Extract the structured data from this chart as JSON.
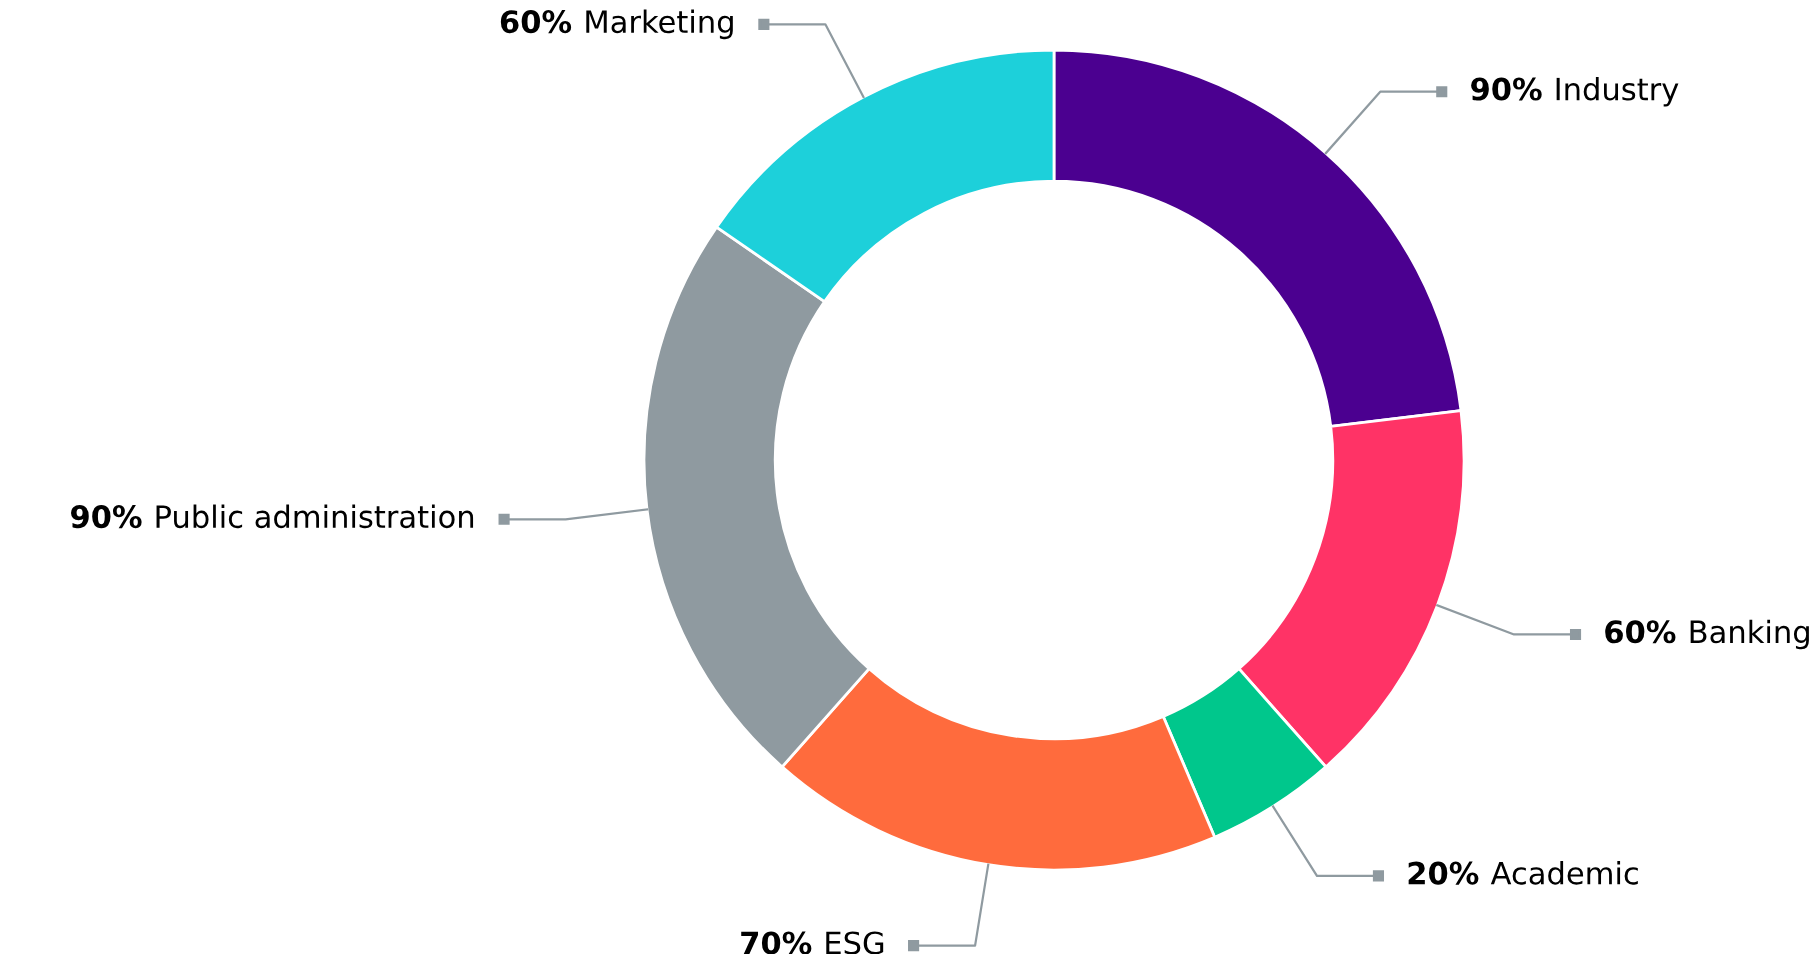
{
  "chart_data": {
    "type": "donut",
    "categories": [
      "Industry",
      "Banking",
      "Academic",
      "ESG",
      "Public administration",
      "Marketing"
    ],
    "values": [
      90,
      60,
      20,
      70,
      90,
      60
    ],
    "value_labels": [
      "90%",
      "60%",
      "20%",
      "70%",
      "90%",
      "60%"
    ],
    "colors": [
      "#4b0090",
      "#ff3366",
      "#00c78c",
      "#ff6b3d",
      "#8f9aa0",
      "#1dd0da"
    ]
  }
}
